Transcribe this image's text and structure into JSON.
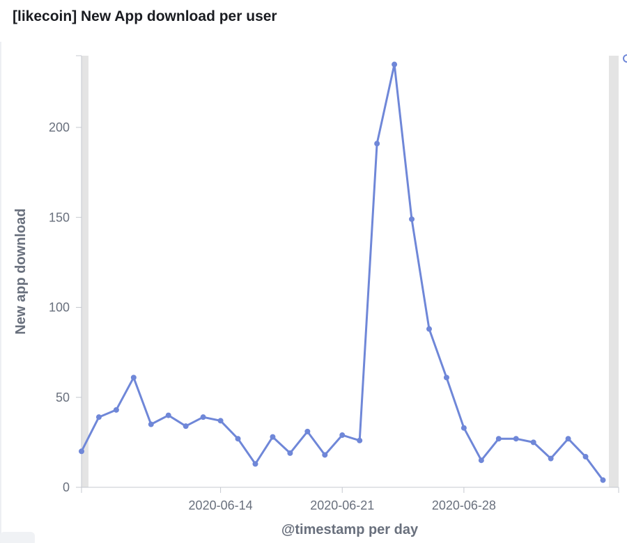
{
  "panel": {
    "title": "[likecoin] New App download per user"
  },
  "chart_data": {
    "type": "line",
    "title": "[likecoin] New App download per user",
    "xlabel": "@timestamp per day",
    "ylabel": "New app download",
    "ylim": [
      0,
      240
    ],
    "y_ticks": [
      0,
      50,
      100,
      150,
      200
    ],
    "x_tick_labels": [
      "2020-06-14",
      "2020-06-21",
      "2020-06-28"
    ],
    "grid": false,
    "line_color": "#6f87d8",
    "shade_color": "#e4e4e4",
    "series": [
      {
        "x": [
          "2020-06-06",
          "2020-06-07",
          "2020-06-08",
          "2020-06-09",
          "2020-06-10",
          "2020-06-11",
          "2020-06-12",
          "2020-06-13",
          "2020-06-14",
          "2020-06-15",
          "2020-06-16",
          "2020-06-17",
          "2020-06-18",
          "2020-06-19",
          "2020-06-20",
          "2020-06-21",
          "2020-06-22",
          "2020-06-23",
          "2020-06-24",
          "2020-06-25",
          "2020-06-26",
          "2020-06-27",
          "2020-06-28",
          "2020-06-29",
          "2020-06-30",
          "2020-07-01",
          "2020-07-02",
          "2020-07-03",
          "2020-07-04",
          "2020-07-05",
          "2020-07-06",
          "2020-07-07"
        ],
        "values": [
          20,
          39,
          43,
          61,
          35,
          40,
          34,
          39,
          37,
          27,
          13,
          28,
          19,
          31,
          18,
          29,
          26,
          191,
          235,
          149,
          88,
          61,
          33,
          15,
          27,
          27,
          25,
          16,
          27,
          17,
          4,
          null
        ]
      }
    ]
  }
}
